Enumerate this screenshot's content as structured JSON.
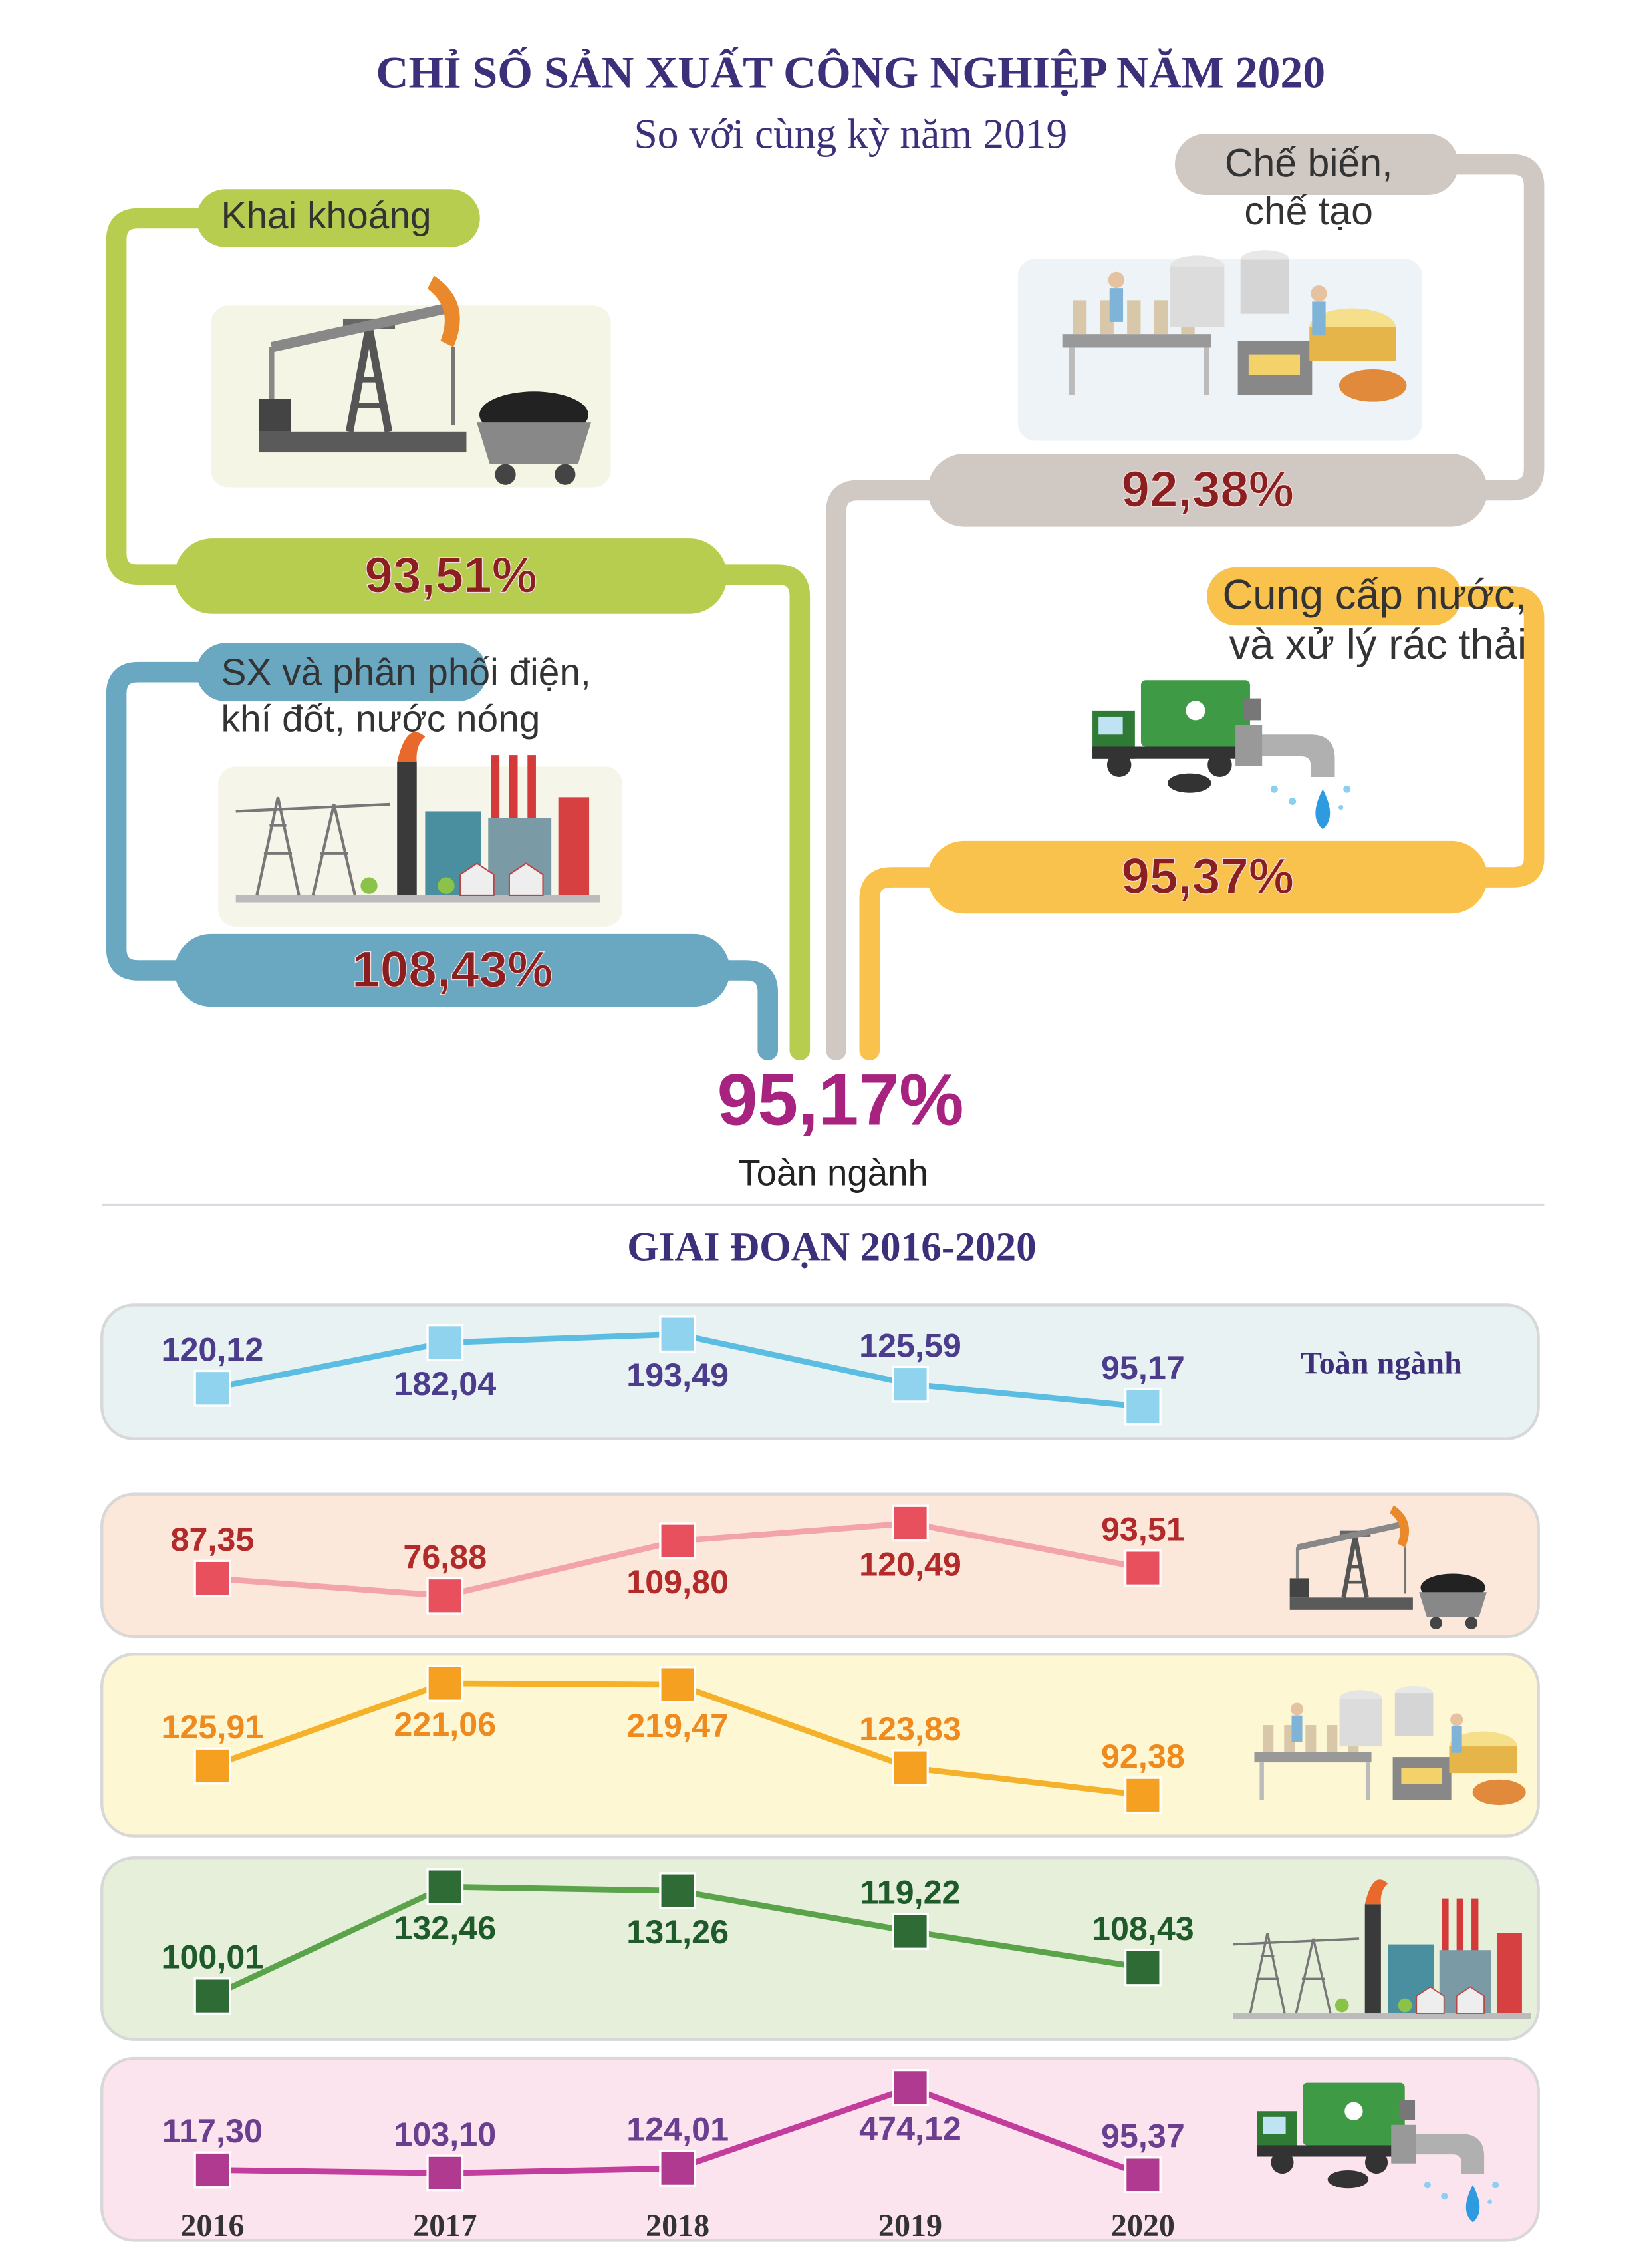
{
  "header": {
    "title": "CHỈ SỐ SẢN XUẤT CÔNG NGHIỆP NĂM 2020",
    "subtitle": "So với cùng kỳ năm 2019"
  },
  "overview": {
    "sectors": [
      {
        "label": [
          "Khai khoáng"
        ],
        "value": "93,51%",
        "color": "#b6cd4f"
      },
      {
        "label": [
          "SX và phân phối điện,",
          "khí đốt, nước nóng"
        ],
        "value": "108,43%",
        "color": "#6aa8c1"
      },
      {
        "label": [
          "Chế biến,",
          "chế tạo"
        ],
        "value": "92,38%",
        "color": "#d0c8c2"
      },
      {
        "label": [
          "Cung cấp nước,",
          "và xử lý rác thải"
        ],
        "value": "95,37%",
        "color": "#f8c24c"
      }
    ],
    "total": {
      "value": "95,17%",
      "label": "Toàn ngành"
    }
  },
  "chart_data": {
    "type": "line",
    "title": "GIAI ĐOẠN 2016-2020",
    "categories": [
      "2016",
      "2017",
      "2018",
      "2019",
      "2020"
    ],
    "series": [
      {
        "name": "Toàn ngành",
        "color": "#5cbde2",
        "marker_color": "#8fd3ef",
        "label_color": "#4b3d8c",
        "background": "#e9f2f3",
        "values": [
          120.12,
          182.04,
          193.49,
          125.59,
          95.17
        ],
        "value_labels": [
          "120,12",
          "182,04",
          "193,49",
          "125,59",
          "95,17"
        ]
      },
      {
        "color": "#f3a3aa",
        "marker_color": "#e8505e",
        "label_color": "#b22a2a",
        "background": "#fbe8da",
        "values": [
          87.35,
          76.88,
          109.8,
          120.49,
          93.51
        ],
        "value_labels": [
          "87,35",
          "76,88",
          "109,80",
          "120,49",
          "93,51"
        ]
      },
      {
        "color": "#f5b12a",
        "marker_color": "#f5a020",
        "label_color": "#ef8a1e",
        "background": "#fdf8d3",
        "values": [
          125.91,
          221.06,
          219.47,
          123.83,
          92.38
        ],
        "value_labels": [
          "125,91",
          "221,06",
          "219,47",
          "123,83",
          "92,38"
        ]
      },
      {
        "color": "#5aa34a",
        "marker_color": "#2f6b35",
        "label_color": "#1f5a2b",
        "background": "#e5efd9",
        "values": [
          100.01,
          132.46,
          131.26,
          119.22,
          108.43
        ],
        "value_labels": [
          "100,01",
          "132,46",
          "131,26",
          "119,22",
          "108,43"
        ]
      },
      {
        "color": "#c23d9c",
        "marker_color": "#b03a8f",
        "label_color": "#6b3f8f",
        "background": "#fce4ef",
        "values": [
          117.3,
          103.1,
          124.01,
          474.12,
          95.37
        ],
        "value_labels": [
          "117,30",
          "103,10",
          "124,01",
          "474,12",
          "95,37"
        ]
      }
    ]
  }
}
